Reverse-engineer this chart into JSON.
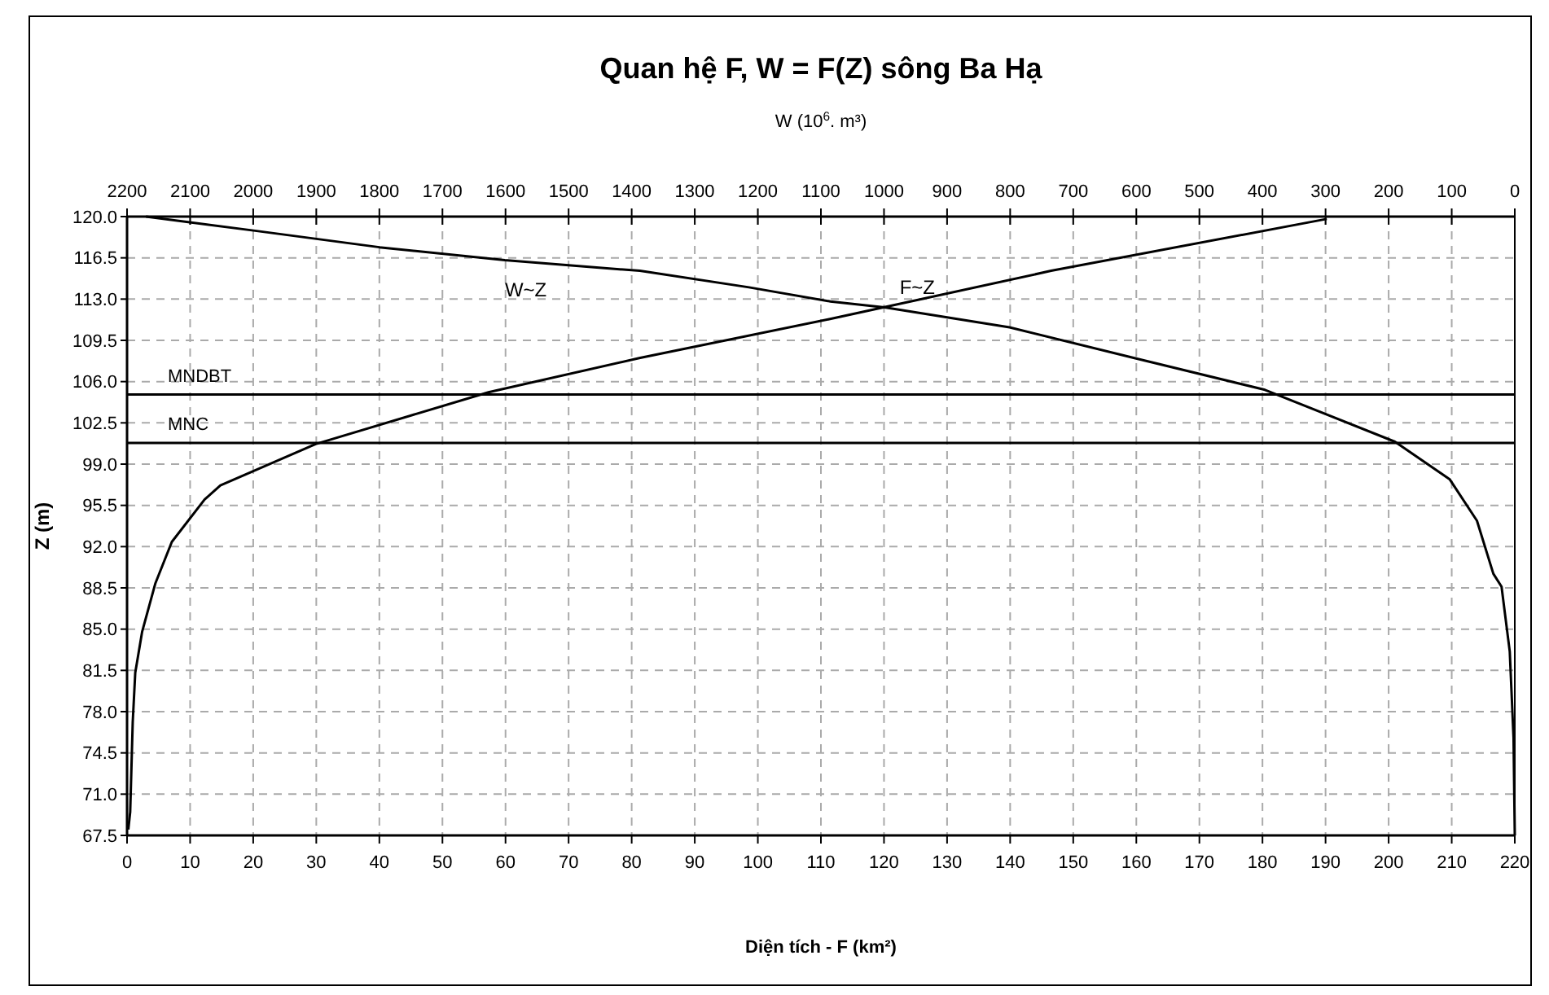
{
  "chart_data": {
    "type": "line",
    "title": "Quan hệ F, W = F(Z) sông Ba Hạ",
    "xlabel": "Diện tích - F (km²)",
    "x2label": "W (10$^{6}$. m³)",
    "ylabel": "Z (m)",
    "xlim": [
      0,
      220
    ],
    "xticks": [
      0,
      10,
      20,
      30,
      40,
      50,
      60,
      70,
      80,
      90,
      100,
      110,
      120,
      130,
      140,
      150,
      160,
      170,
      180,
      190,
      200,
      210,
      220
    ],
    "x2lim": [
      2200,
      0
    ],
    "x2ticks": [
      2200,
      2100,
      2000,
      1900,
      1800,
      1700,
      1600,
      1500,
      1400,
      1300,
      1200,
      1100,
      1000,
      900,
      800,
      700,
      600,
      500,
      400,
      300,
      200,
      100,
      0
    ],
    "ylim": [
      67.5,
      120
    ],
    "yticks": [
      67.5,
      {
        "value": 71,
        "label": "71.0"
      },
      74.5,
      {
        "value": 78,
        "label": "78.0"
      },
      81.5,
      {
        "value": 85,
        "label": "85.0"
      },
      88.5,
      {
        "value": 92,
        "label": "92.0"
      },
      95.5,
      {
        "value": 99,
        "label": "99.0"
      },
      102.5,
      {
        "value": 106,
        "label": "106.0"
      },
      109.5,
      {
        "value": 113,
        "label": "113.0"
      },
      116.5,
      {
        "value": 120,
        "label": "120.0"
      }
    ],
    "grid": true,
    "marker": "none",
    "line_style": "solid",
    "series": [
      {
        "name": "F~Z",
        "color": "#000000",
        "x": [
          0.2,
          0.5,
          0.9,
          1.3,
          2.4,
          4.5,
          7.1,
          12.3,
          14.8,
          29.9,
          57.3,
          81.2,
          111.3,
          119.9,
          146.5,
          190.2
        ],
        "values": [
          68,
          69.5,
          77.1,
          81.3,
          84.8,
          88.9,
          92.4,
          96,
          97.2,
          100.7,
          105.1,
          108,
          111.3,
          112.3,
          115.4,
          119.8
        ]
      },
      {
        "name": "W~Z",
        "color": "#000000",
        "axis": "x2",
        "x": [
          0,
          2,
          8,
          21,
          34,
          60,
          103,
          190,
          396,
          603,
          801,
          999,
          1085,
          1214,
          1387,
          1601,
          1800,
          1997,
          2170
        ],
        "values": [
          67.5,
          75.8,
          83.1,
          88.6,
          89.7,
          94.2,
          97.7,
          100.9,
          105.3,
          108,
          110.6,
          112.3,
          112.8,
          114,
          115.4,
          116.3,
          117.4,
          118.8,
          120
        ]
      }
    ],
    "ref_lines": [
      {
        "axis": "y",
        "value": 104.9,
        "label": "MNDBT",
        "color": "#000000"
      },
      {
        "axis": "y",
        "value": 100.8,
        "label": "MNC",
        "color": "#000000"
      }
    ]
  }
}
